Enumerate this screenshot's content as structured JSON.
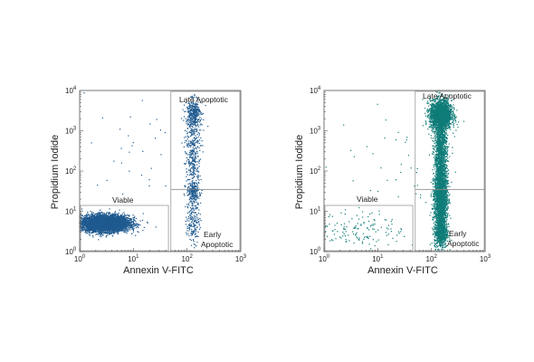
{
  "chart_data": [
    {
      "type": "scatter",
      "panel": "left",
      "xlabel": "Annexin V-FITC",
      "ylabel": "Propidium Iodide",
      "xscale": "log",
      "yscale": "log",
      "xlim": [
        1,
        1000
      ],
      "ylim": [
        1,
        10000
      ],
      "x_ticks": [
        {
          "base": "10",
          "exp": "0"
        },
        {
          "base": "10",
          "exp": "1"
        },
        {
          "base": "10",
          "exp": "2"
        },
        {
          "base": "10",
          "exp": "3"
        }
      ],
      "y_ticks": [
        {
          "base": "10",
          "exp": "0"
        },
        {
          "base": "10",
          "exp": "1"
        },
        {
          "base": "10",
          "exp": "2"
        },
        {
          "base": "10",
          "exp": "3"
        },
        {
          "base": "10",
          "exp": "4"
        }
      ],
      "point_color": "#1f5a8f",
      "grid": false,
      "quadrant_gates": {
        "viable": {
          "label": "Viable",
          "x": [
            1,
            45
          ],
          "y": [
            1,
            14
          ]
        },
        "early_apoptotic": {
          "label": [
            "Early",
            "Apoptotic"
          ],
          "x": [
            50,
            1000
          ],
          "y": [
            1,
            35
          ]
        },
        "late_apoptotic": {
          "label": "Late Apoptotic",
          "x": [
            50,
            1000
          ],
          "y": [
            35,
            10000
          ]
        }
      },
      "populations": [
        {
          "center": [
            3.0,
            5.0
          ],
          "spread": [
            0.22,
            0.1
          ],
          "count": 5200
        },
        {
          "center": [
            130,
            2800
          ],
          "spread": [
            0.07,
            0.15
          ],
          "count": 300
        },
        {
          "center": [
            130,
            300
          ],
          "spread": [
            0.07,
            0.6
          ],
          "count": 420
        },
        {
          "center": [
            130,
            30
          ],
          "spread": [
            0.06,
            0.12
          ],
          "count": 200
        },
        {
          "center": [
            130,
            6
          ],
          "spread": [
            0.06,
            0.3
          ],
          "count": 180
        },
        {
          "center": [
            15,
            500
          ],
          "spread": [
            0.7,
            0.8
          ],
          "count": 45
        }
      ]
    },
    {
      "type": "scatter",
      "panel": "right",
      "xlabel": "Annexin V-FITC",
      "ylabel": "Propidium Iodide",
      "xscale": "log",
      "yscale": "log",
      "xlim": [
        1,
        1000
      ],
      "ylim": [
        1,
        10000
      ],
      "x_ticks": [
        {
          "base": "10",
          "exp": "0"
        },
        {
          "base": "10",
          "exp": "1"
        },
        {
          "base": "10",
          "exp": "2"
        },
        {
          "base": "10",
          "exp": "3"
        }
      ],
      "y_ticks": [
        {
          "base": "10",
          "exp": "0"
        },
        {
          "base": "10",
          "exp": "1"
        },
        {
          "base": "10",
          "exp": "2"
        },
        {
          "base": "10",
          "exp": "3"
        },
        {
          "base": "10",
          "exp": "4"
        }
      ],
      "point_color": "#0f7c78",
      "grid": false,
      "quadrant_gates": {
        "viable": {
          "label": "Viable",
          "x": [
            1,
            45
          ],
          "y": [
            1,
            14
          ]
        },
        "early_apoptotic": {
          "label": [
            "Early",
            "Apoptotic"
          ],
          "x": [
            50,
            1000
          ],
          "y": [
            1,
            35
          ]
        },
        "late_apoptotic": {
          "label": "Late Apoptotic",
          "x": [
            50,
            1000
          ],
          "y": [
            35,
            10000
          ]
        }
      },
      "populations": [
        {
          "center": [
            5.0,
            3.5
          ],
          "spread": [
            0.4,
            0.22
          ],
          "count": 140
        },
        {
          "center": [
            150,
            2500
          ],
          "spread": [
            0.1,
            0.18
          ],
          "count": 2200
        },
        {
          "center": [
            150,
            250
          ],
          "spread": [
            0.06,
            0.55
          ],
          "count": 1500
        },
        {
          "center": [
            150,
            20
          ],
          "spread": [
            0.06,
            0.35
          ],
          "count": 1800
        },
        {
          "center": [
            150,
            3
          ],
          "spread": [
            0.06,
            0.2
          ],
          "count": 700
        },
        {
          "center": [
            25,
            150
          ],
          "spread": [
            0.6,
            0.7
          ],
          "count": 40
        }
      ]
    }
  ]
}
